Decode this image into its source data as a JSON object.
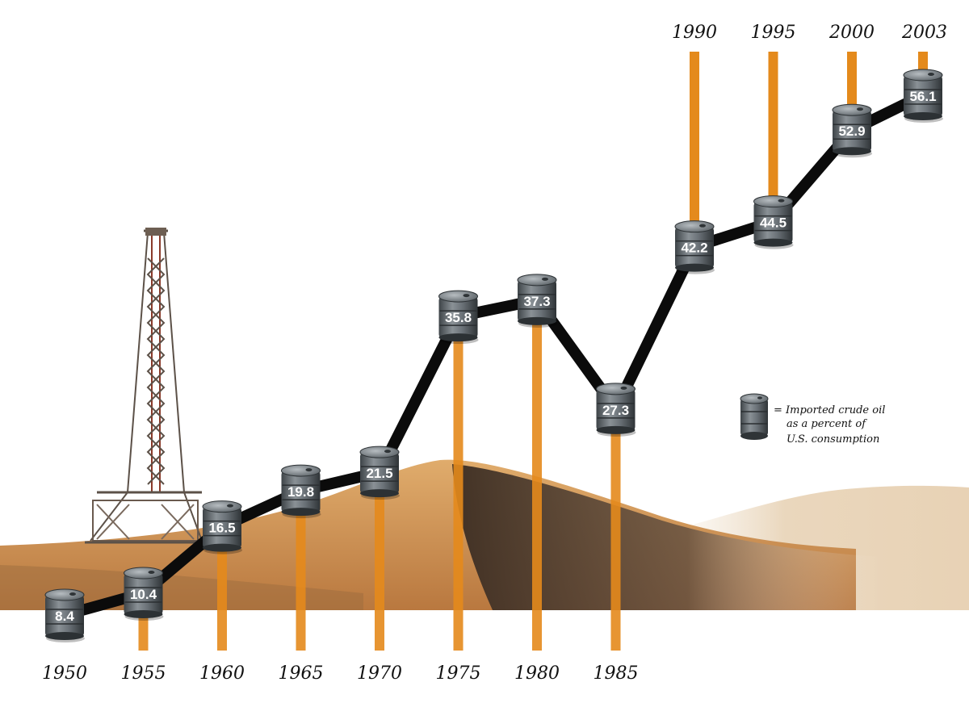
{
  "chart_data": {
    "type": "line",
    "x": [
      "1950",
      "1955",
      "1960",
      "1965",
      "1970",
      "1975",
      "1980",
      "1985",
      "1990",
      "1995",
      "2000",
      "2003"
    ],
    "values": [
      8.4,
      10.4,
      16.5,
      19.8,
      21.5,
      35.8,
      37.3,
      27.3,
      42.2,
      44.5,
      52.9,
      56.1
    ],
    "title": "",
    "xlabel": "",
    "ylabel": "",
    "ylim": [
      8.4,
      56.1
    ],
    "legend": {
      "placement": "right",
      "icon": "oil-barrel-icon",
      "lines": [
        "= Imported crude oil",
        "as a percent of",
        "U.S. consumption"
      ]
    },
    "grid": false
  },
  "colors": {
    "line": "#0b0b0b",
    "stem": "#e48a1c",
    "barrel": "#6b7278",
    "sand": "#d49a5a",
    "sand_shadow": "#4a3a2e"
  }
}
